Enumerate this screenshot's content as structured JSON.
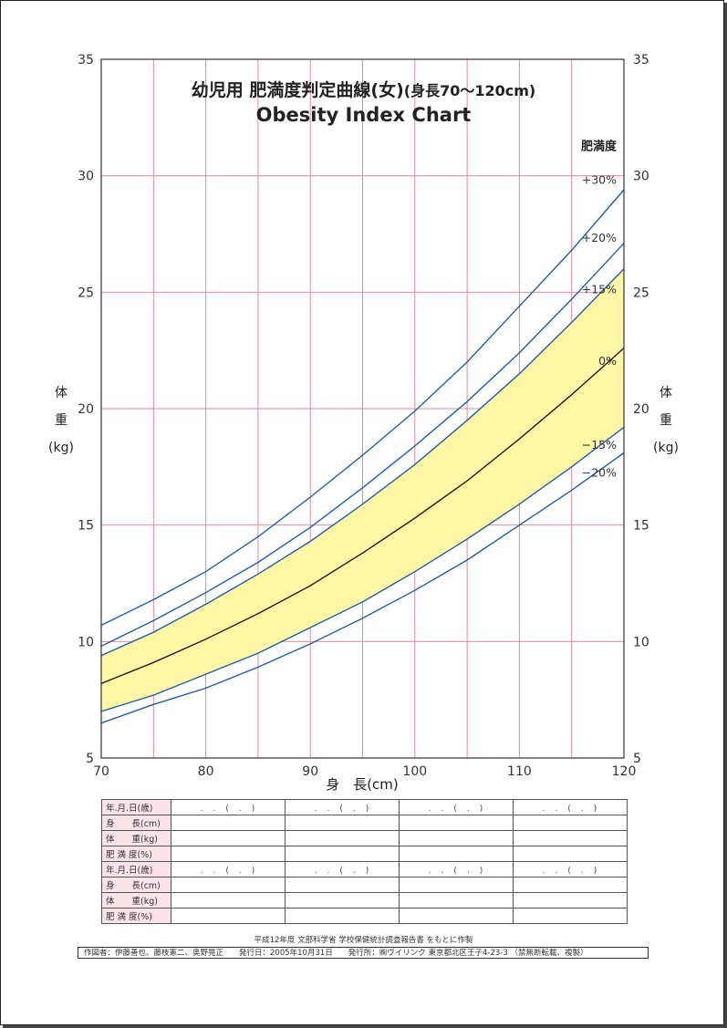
{
  "title": {
    "main": "幼児用 肥満度判定曲線(女)",
    "sub": "(身長70〜120cm)",
    "en": "Obesity Index Chart"
  },
  "axes": {
    "xlabel": "身　長(cm)",
    "ylabel_chars": [
      "体",
      "重",
      "(kg)"
    ],
    "legend_title": "肥満度"
  },
  "colors": {
    "grid": "#e9899e",
    "curve": "#1f5fa8",
    "median": "#2a1a1a",
    "band": "#fff7a6"
  },
  "chart_data": {
    "type": "line",
    "title": "幼児用 肥満度判定曲線(女) (身長70〜120cm) Obesity Index Chart",
    "xlabel": "身 長(cm)",
    "ylabel": "体重(kg)",
    "xlim": [
      70,
      120
    ],
    "ylim": [
      5,
      35
    ],
    "x_ticks": [
      70,
      80,
      90,
      100,
      110,
      120
    ],
    "y_ticks": [
      5,
      10,
      15,
      20,
      25,
      30,
      35
    ],
    "grid": true,
    "legend_title": "肥満度",
    "band": {
      "from": "−15%",
      "to": "+15%"
    },
    "x": [
      70,
      75,
      80,
      85,
      90,
      95,
      100,
      105,
      110,
      115,
      120
    ],
    "series": [
      {
        "name": "+30%",
        "values": [
          10.7,
          11.8,
          13.0,
          14.5,
          16.2,
          18.0,
          19.9,
          22.0,
          24.4,
          26.8,
          29.4
        ]
      },
      {
        "name": "+20%",
        "values": [
          9.8,
          10.9,
          12.1,
          13.4,
          14.9,
          16.6,
          18.4,
          20.3,
          22.4,
          24.7,
          27.1
        ]
      },
      {
        "name": "+15%",
        "values": [
          9.4,
          10.4,
          11.6,
          12.9,
          14.3,
          15.9,
          17.6,
          19.5,
          21.5,
          23.7,
          26.0
        ]
      },
      {
        "name": "0%",
        "values": [
          8.2,
          9.1,
          10.1,
          11.2,
          12.4,
          13.8,
          15.3,
          16.9,
          18.7,
          20.6,
          22.6
        ]
      },
      {
        "name": "−15%",
        "values": [
          7.0,
          7.7,
          8.6,
          9.5,
          10.6,
          11.7,
          13.0,
          14.4,
          15.9,
          17.5,
          19.2
        ]
      },
      {
        "name": "−20%",
        "values": [
          6.5,
          7.3,
          8.0,
          8.9,
          9.9,
          11.0,
          12.2,
          13.5,
          15.0,
          16.5,
          18.1
        ]
      }
    ]
  },
  "table": {
    "row_labels": [
      "年.月.日(歳)",
      "身　　長(cm)",
      "体　　重(kg)",
      "肥 満 度(%)",
      "年.月.日(歳)",
      "身　　長(cm)",
      "体　　重(kg)",
      "肥 満 度(%)"
    ],
    "date_placeholder": ".　.　(　.　)",
    "columns": 4
  },
  "footer": {
    "note": "平成12年度 文部科学省 学校保健統計調査報告書 をもとに作製",
    "credit": "作図者：伊藤善也、藤枝憲二、奥野晃正　　発行日：2005年10月31日　　発行所：㈱ヴイリンク 東京都北区王子4-23-3 （禁無断転載、複製）"
  }
}
